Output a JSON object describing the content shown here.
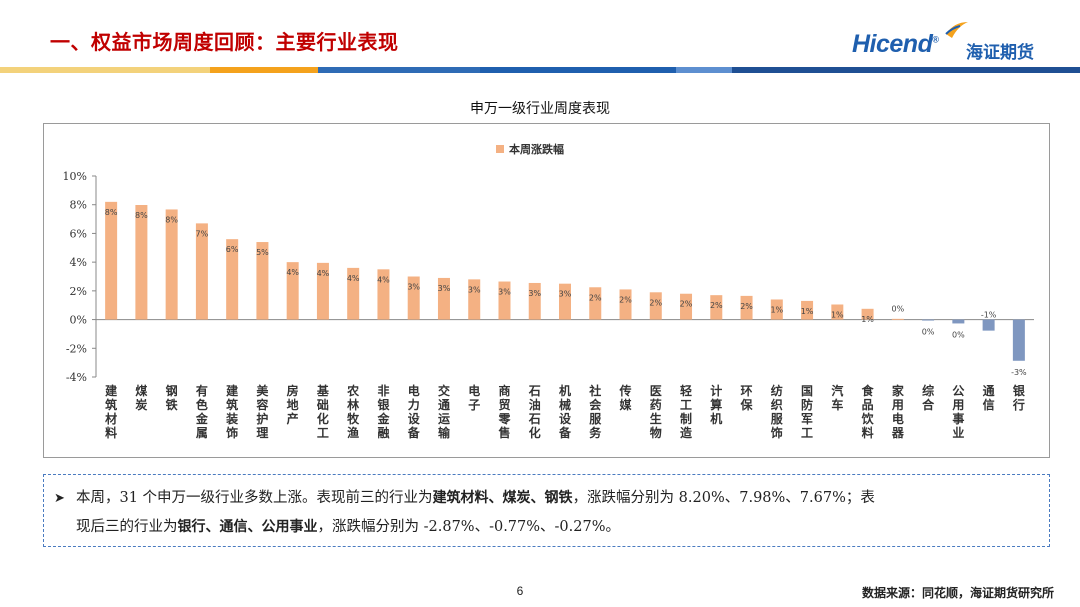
{
  "header": {
    "title": "一、权益市场周度回顾：主要行业表现",
    "logo_text": "Hicend",
    "logo_reg": "®",
    "logo_cn": "海证期货"
  },
  "colors": {
    "title_red": "#c00000",
    "brand_blue": "#1f5fae",
    "stripe": [
      "#f3d27b",
      "#f4a21d",
      "#2f6bb5",
      "#1f5fae",
      "#5d8fd0",
      "#1f4f93"
    ],
    "bar_positive": "#f4b183",
    "bar_negative": "#7f97c0",
    "dashed_border": "#4a7bc0"
  },
  "chart_data": {
    "type": "bar",
    "title": "申万一级行业周度表现",
    "legend": "本周涨跌幅",
    "legend_position": "top-center",
    "ylim": [
      -4,
      10
    ],
    "y_ticks": [
      "10%",
      "8%",
      "6%",
      "4%",
      "2%",
      "0%",
      "-2%",
      "-4%"
    ],
    "grid": false,
    "categories": [
      "建筑材料",
      "煤炭",
      "钢铁",
      "有色金属",
      "建筑装饰",
      "美容护理",
      "房地产",
      "基础化工",
      "农林牧渔",
      "非银金融",
      "电力设备",
      "交通运输",
      "电子",
      "商贸零售",
      "石油石化",
      "机械设备",
      "社会服务",
      "传媒",
      "医药生物",
      "轻工制造",
      "计算机",
      "环保",
      "纺织服饰",
      "国防军工",
      "汽车",
      "食品饮料",
      "家用电器",
      "综合",
      "公用事业",
      "通信",
      "银行"
    ],
    "values": [
      8.2,
      7.98,
      7.67,
      6.7,
      5.6,
      5.4,
      4.0,
      3.95,
      3.6,
      3.5,
      3.0,
      2.9,
      2.8,
      2.65,
      2.55,
      2.5,
      2.25,
      2.1,
      1.9,
      1.8,
      1.7,
      1.65,
      1.4,
      1.3,
      1.05,
      0.75,
      0.05,
      -0.05,
      -0.27,
      -0.77,
      -2.87
    ],
    "data_labels": [
      "8%",
      "8%",
      "8%",
      "7%",
      "6%",
      "5%",
      "4%",
      "4%",
      "4%",
      "4%",
      "3%",
      "3%",
      "3%",
      "3%",
      "3%",
      "3%",
      "2%",
      "2%",
      "2%",
      "2%",
      "2%",
      "2%",
      "1%",
      "1%",
      "1%",
      "1%",
      "0%",
      "0%",
      "0%",
      "-1%",
      "-3%"
    ]
  },
  "note": {
    "line1_prefix": "本周，31 个申万一级行业多数上涨。表现前三的行业为",
    "line1_bold": "建筑材料、煤炭、钢铁",
    "line1_suffix": "，涨跌幅分别为 8.20%、7.98%、7.67%；表",
    "line2_prefix": "现后三的行业为",
    "line2_bold": "银行、通信、公用事业",
    "line2_suffix": "，涨跌幅分别为 -2.87%、-0.77%、-0.27%。"
  },
  "footer": {
    "page_number": "6",
    "source": "数据来源：同花顺，海证期货研究所"
  }
}
